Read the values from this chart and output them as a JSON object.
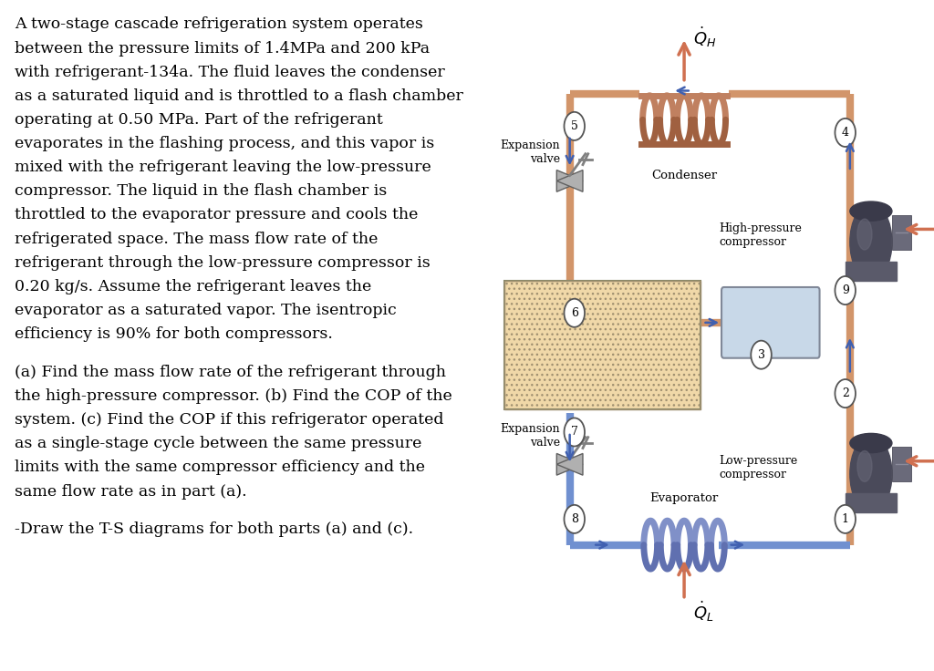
{
  "background_color": "#ffffff",
  "pipe_hot": "#D2956A",
  "pipe_cold": "#7090D0",
  "pipe_lw": 6,
  "text_lines_p1": [
    "A two-stage cascade refrigeration system operates",
    "between the pressure limits of 1.4MPa and 200 kPa",
    "with refrigerant-134a. The fluid leaves the condenser",
    "as a saturated liquid and is throttled to a flash chamber",
    "operating at 0.50 MPa. Part of the refrigerant",
    "evaporates in the flashing process, and this vapor is",
    "mixed with the refrigerant leaving the low-pressure",
    "compressor. The liquid in the flash chamber is",
    "throttled to the evaporator pressure and cools the",
    "refrigerated space. The mass flow rate of the",
    "refrigerant through the low-pressure compressor is",
    "0.20 kg/s. Assume the refrigerant leaves the",
    "evaporator as a saturated vapor. The isentropic",
    "efficiency is 90% for both compressors."
  ],
  "text_lines_p2": [
    "(a) Find the mass flow rate of the refrigerant through",
    "the high-pressure compressor. (b) Find the COP of the",
    "system. (c) Find the COP if this refrigerator operated",
    "as a single-stage cycle between the same pressure",
    "limits with the same compressor efficiency and the",
    "same flow rate as in part (a)."
  ],
  "text_line_p3": "-Draw the T-S diagrams for both parts (a) and (c).",
  "fontsize_text": 12.5
}
